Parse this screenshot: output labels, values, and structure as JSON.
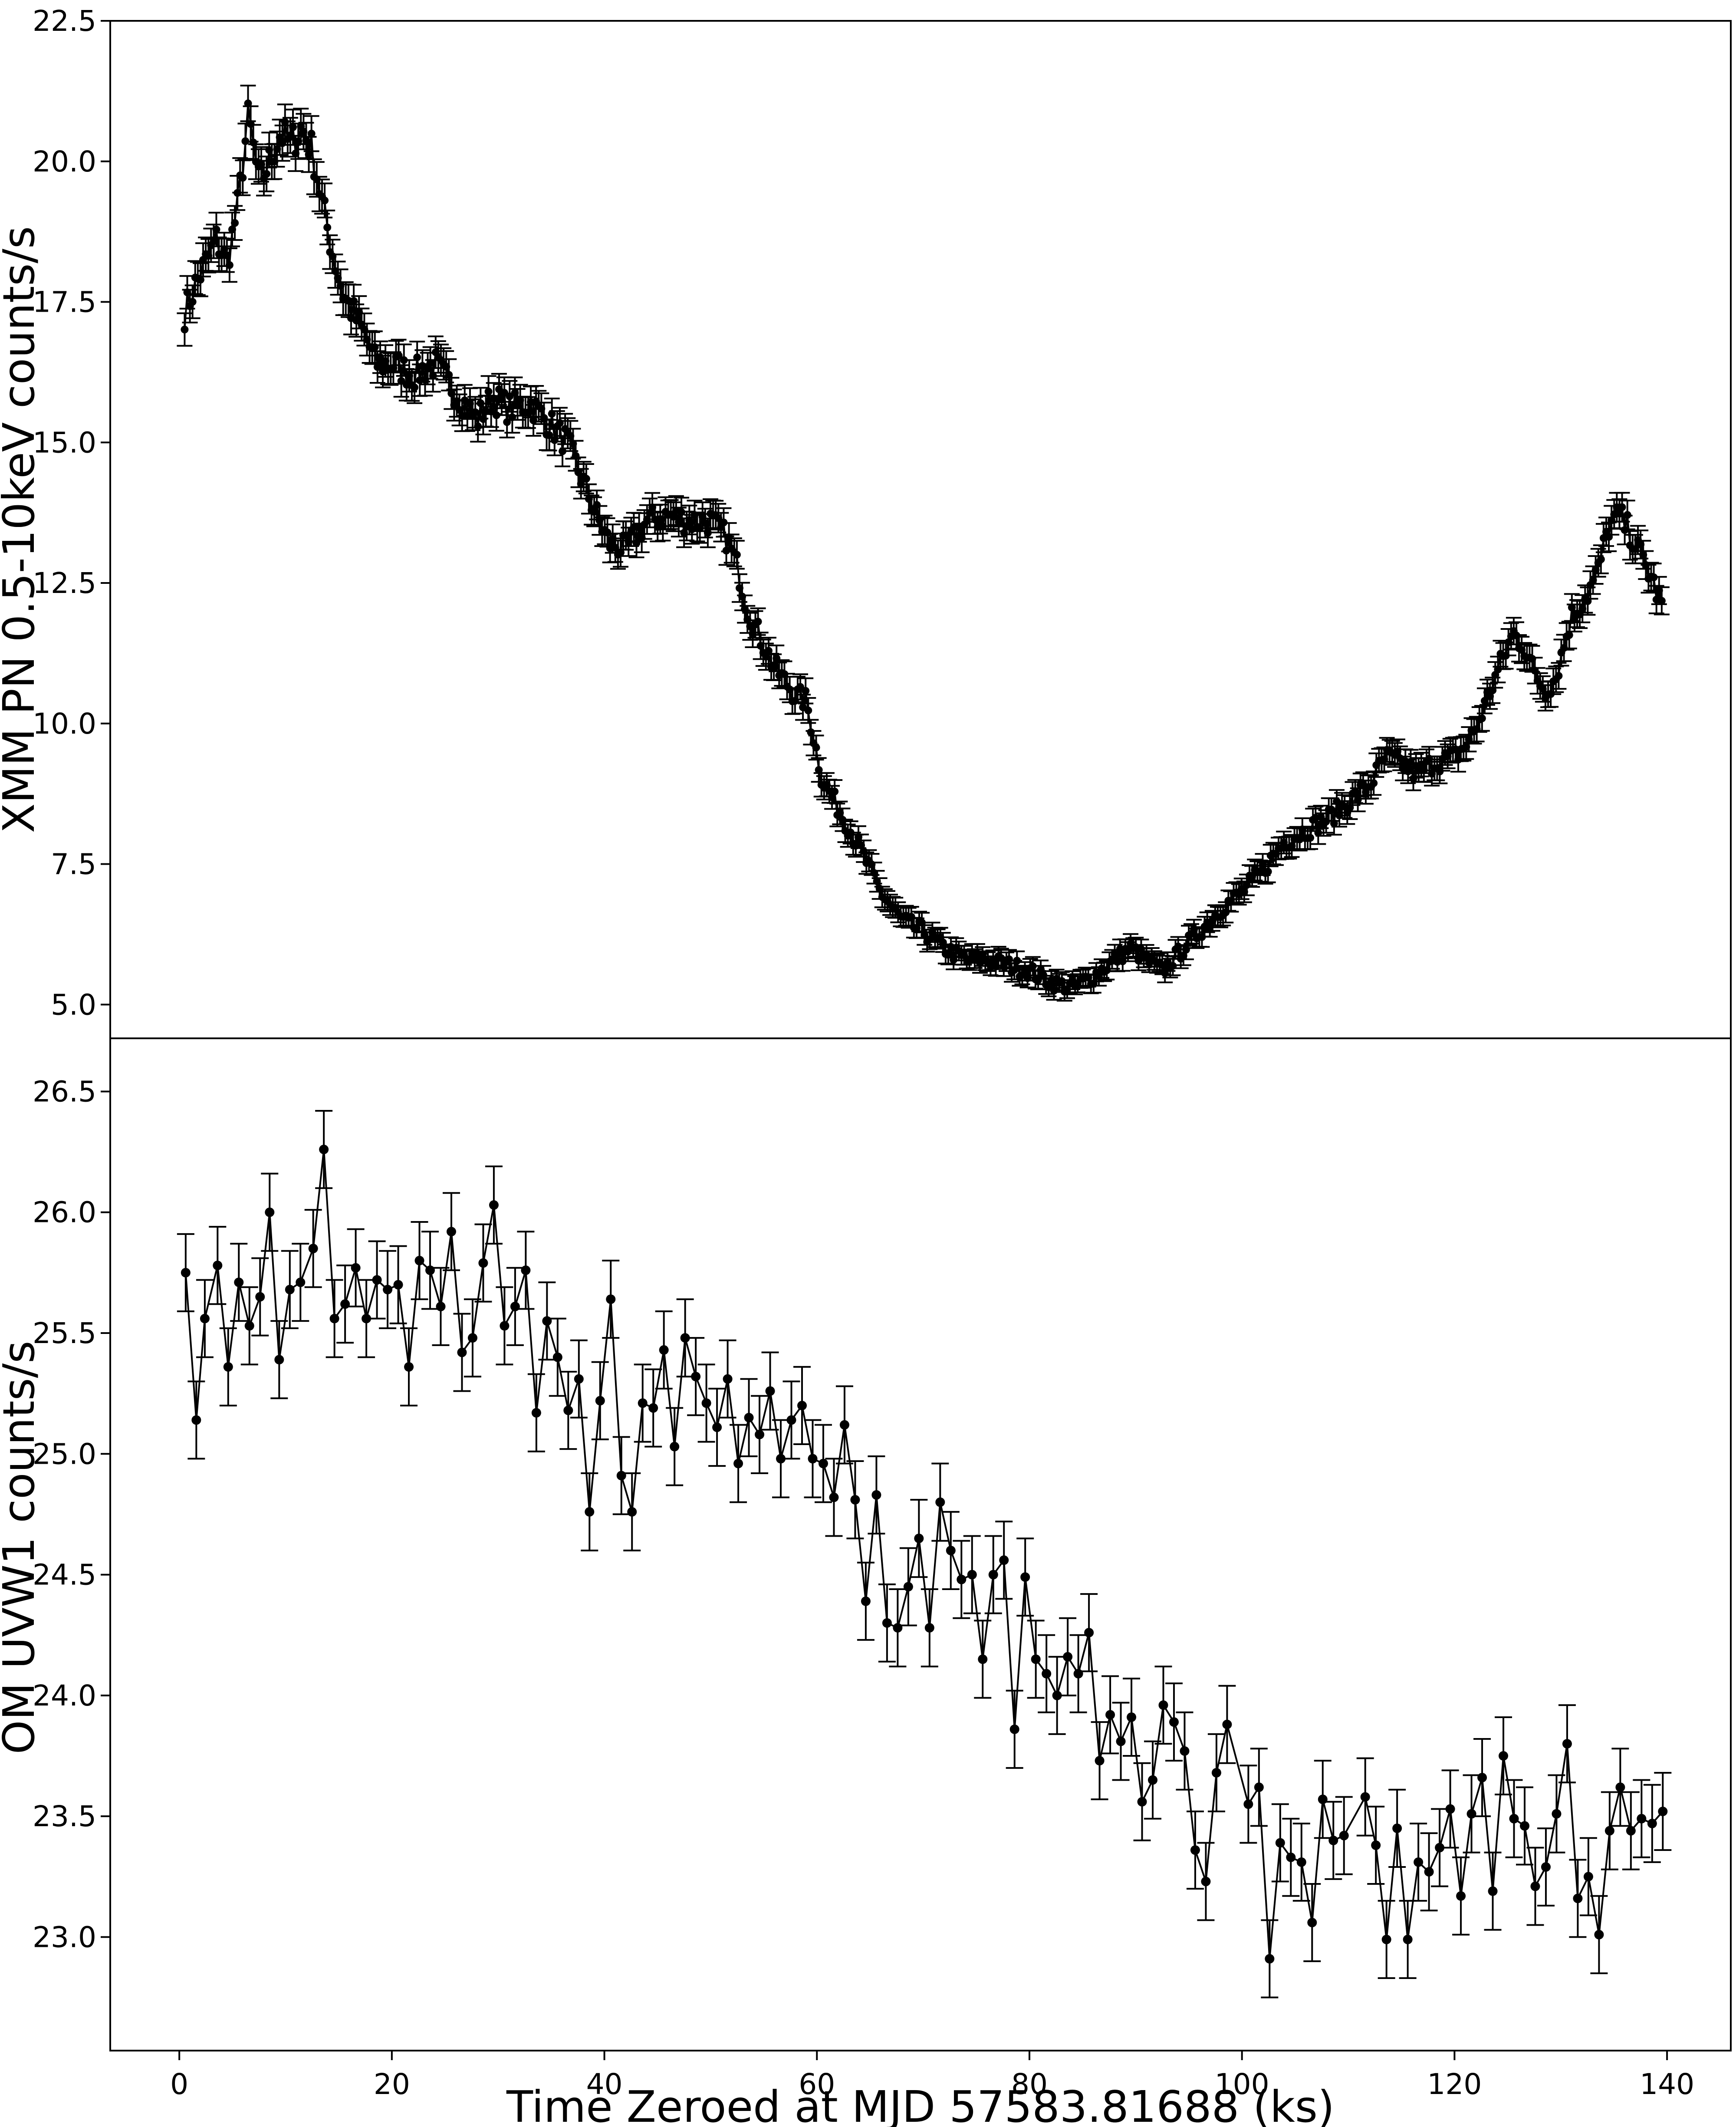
{
  "chart_data": [
    {
      "type": "scatter",
      "panel": "top",
      "ylabel": "XMM PN 0.5-10keV counts/s",
      "ylim": [
        4.4,
        22.5
      ],
      "yticks": [
        5.0,
        7.5,
        10.0,
        12.5,
        15.0,
        17.5,
        20.0,
        22.5
      ],
      "ytick_labels": [
        "5.0",
        "7.5",
        "10.0",
        "12.5",
        "15.0",
        "17.5",
        "20.0",
        "22.5"
      ],
      "marker": "circle",
      "line": "connected",
      "errorbars": true,
      "color": "#000000",
      "anchors": {
        "x": [
          0.5,
          1.5,
          2.5,
          3.5,
          4.5,
          5.5,
          6.5,
          7.5,
          8.5,
          9.5,
          10.5,
          11.5,
          12.5,
          13.5,
          14.5,
          15.5,
          17.5,
          18.5,
          20,
          22,
          24,
          26,
          28,
          29.5,
          31,
          33,
          35,
          36.5,
          38,
          39.5,
          40.5,
          42,
          44,
          46,
          48,
          50,
          51.5,
          52.5,
          53.5,
          54.5,
          56,
          58,
          59,
          60.5,
          62,
          64,
          66,
          68,
          70,
          72,
          74,
          76,
          78,
          80,
          82,
          84,
          86,
          88,
          89.5,
          91,
          92.5,
          94,
          96,
          98,
          100,
          102,
          104,
          106,
          108,
          110,
          112,
          113.5,
          115,
          116.5,
          118,
          120,
          121,
          122,
          124,
          125.5,
          126.5,
          127.5,
          128.5,
          129.5,
          131,
          132.5,
          133.5,
          134.5,
          135.5,
          136.5,
          137.5,
          138.5,
          139.5
        ],
        "y": [
          17.3,
          17.8,
          18.2,
          18.6,
          18.2,
          19.2,
          20.8,
          19.6,
          20.0,
          20.5,
          20.3,
          20.6,
          20.2,
          19.2,
          18.3,
          17.6,
          16.9,
          16.4,
          16.4,
          16.2,
          16.4,
          15.9,
          15.4,
          15.8,
          15.6,
          15.7,
          15.3,
          15.0,
          14.3,
          13.6,
          13.2,
          13.1,
          13.6,
          13.7,
          13.6,
          13.6,
          13.3,
          12.8,
          12.0,
          11.6,
          11.0,
          10.5,
          10.4,
          9.0,
          8.5,
          7.8,
          7.0,
          6.5,
          6.3,
          6.0,
          5.8,
          5.8,
          5.7,
          5.6,
          5.4,
          5.3,
          5.5,
          5.8,
          6.0,
          5.8,
          5.6,
          5.9,
          6.3,
          6.7,
          7.0,
          7.4,
          7.9,
          8.1,
          8.3,
          8.6,
          8.9,
          9.4,
          9.3,
          9.1,
          9.3,
          9.4,
          9.6,
          9.9,
          10.9,
          11.6,
          11.4,
          10.9,
          10.6,
          10.8,
          11.9,
          12.3,
          12.7,
          13.5,
          13.7,
          13.4,
          13.0,
          12.6,
          12.1
        ],
        "n_points": 560,
        "err": 0.22
      }
    },
    {
      "type": "scatter",
      "panel": "bottom",
      "xlabel": "Time Zeroed at MJD 57583.81688 (ks)",
      "ylabel": "OM UVW1 counts/s",
      "xlim": [
        -6.5,
        146
      ],
      "ylim": [
        22.53,
        26.72
      ],
      "xticks": [
        0,
        20,
        40,
        60,
        80,
        100,
        120,
        140
      ],
      "xtick_labels": [
        "0",
        "20",
        "40",
        "60",
        "80",
        "100",
        "120",
        "140"
      ],
      "yticks": [
        23.0,
        23.5,
        24.0,
        24.5,
        25.0,
        25.5,
        26.0,
        26.5
      ],
      "ytick_labels": [
        "23.0",
        "23.5",
        "24.0",
        "24.5",
        "25.0",
        "25.5",
        "26.0",
        "26.5"
      ],
      "marker": "circle",
      "line": "connected",
      "errorbars": true,
      "color": "#000000",
      "x": [
        0.6,
        1.6,
        2.4,
        3.6,
        4.6,
        5.6,
        6.6,
        7.6,
        8.5,
        9.4,
        10.4,
        11.4,
        12.6,
        13.6,
        14.6,
        15.6,
        16.6,
        17.6,
        18.6,
        19.6,
        20.6,
        21.6,
        22.6,
        23.6,
        24.6,
        25.6,
        26.6,
        27.6,
        28.6,
        29.6,
        30.6,
        31.6,
        32.6,
        33.6,
        34.6,
        35.6,
        36.6,
        37.6,
        38.6,
        39.6,
        40.6,
        41.6,
        42.6,
        43.6,
        44.6,
        45.6,
        46.6,
        47.6,
        48.6,
        49.6,
        50.6,
        51.6,
        52.6,
        53.6,
        54.6,
        55.6,
        56.6,
        57.6,
        58.6,
        59.6,
        60.6,
        61.6,
        62.6,
        63.6,
        64.6,
        65.6,
        66.6,
        67.6,
        68.6,
        69.6,
        70.6,
        71.6,
        72.6,
        73.6,
        74.6,
        75.6,
        76.6,
        77.6,
        78.6,
        79.6,
        80.6,
        81.6,
        82.6,
        83.6,
        84.6,
        85.6,
        86.6,
        87.6,
        88.6,
        89.6,
        90.6,
        91.6,
        92.6,
        93.6,
        94.6,
        95.6,
        96.6,
        97.6,
        98.6,
        100.6,
        101.6,
        102.6,
        103.6,
        104.6,
        105.6,
        106.6,
        107.6,
        108.6,
        109.6,
        111.6,
        112.6,
        113.6,
        114.6,
        115.6,
        116.6,
        117.6,
        118.6,
        119.6,
        120.6,
        121.6,
        122.6,
        123.6,
        124.6,
        125.6,
        126.6,
        127.6,
        128.6,
        129.6,
        130.6,
        131.6,
        132.6,
        133.6,
        134.6,
        135.6,
        136.6,
        137.6,
        138.6,
        139.6
      ],
      "y": [
        25.75,
        25.14,
        25.56,
        25.78,
        25.36,
        25.71,
        25.53,
        25.65,
        26.0,
        25.39,
        25.68,
        25.71,
        25.85,
        26.26,
        25.56,
        25.62,
        25.77,
        25.56,
        25.72,
        25.68,
        25.7,
        25.36,
        25.8,
        25.76,
        25.61,
        25.92,
        25.42,
        25.48,
        25.79,
        26.03,
        25.53,
        25.61,
        25.76,
        25.17,
        25.55,
        25.4,
        25.18,
        25.31,
        24.76,
        25.22,
        25.64,
        24.91,
        24.76,
        25.21,
        25.19,
        25.43,
        25.03,
        25.48,
        25.32,
        25.21,
        25.11,
        25.31,
        24.96,
        25.15,
        25.08,
        25.26,
        24.98,
        25.14,
        25.2,
        24.98,
        24.96,
        24.82,
        25.12,
        24.81,
        24.39,
        24.83,
        24.3,
        24.28,
        24.45,
        24.65,
        24.28,
        24.8,
        24.6,
        24.48,
        24.5,
        24.15,
        24.5,
        24.56,
        23.86,
        24.49,
        24.15,
        24.09,
        24.0,
        24.16,
        24.09,
        24.26,
        23.73,
        23.92,
        23.81,
        23.91,
        23.56,
        23.65,
        23.96,
        23.89,
        23.77,
        23.36,
        23.23,
        23.68,
        23.88,
        23.55,
        23.62,
        22.91,
        23.39,
        23.33,
        23.31,
        23.06,
        23.57,
        23.4,
        23.42,
        23.58,
        23.38,
        22.99,
        23.45,
        22.99,
        23.31,
        23.27,
        23.37,
        23.53,
        23.17,
        23.51,
        23.66,
        23.19,
        23.75,
        23.49,
        23.46,
        23.21,
        23.29,
        23.51,
        23.8,
        23.16,
        23.25,
        23.01,
        23.44,
        23.62,
        23.44,
        23.49,
        23.47,
        23.52
      ],
      "err": 0.16
    }
  ]
}
